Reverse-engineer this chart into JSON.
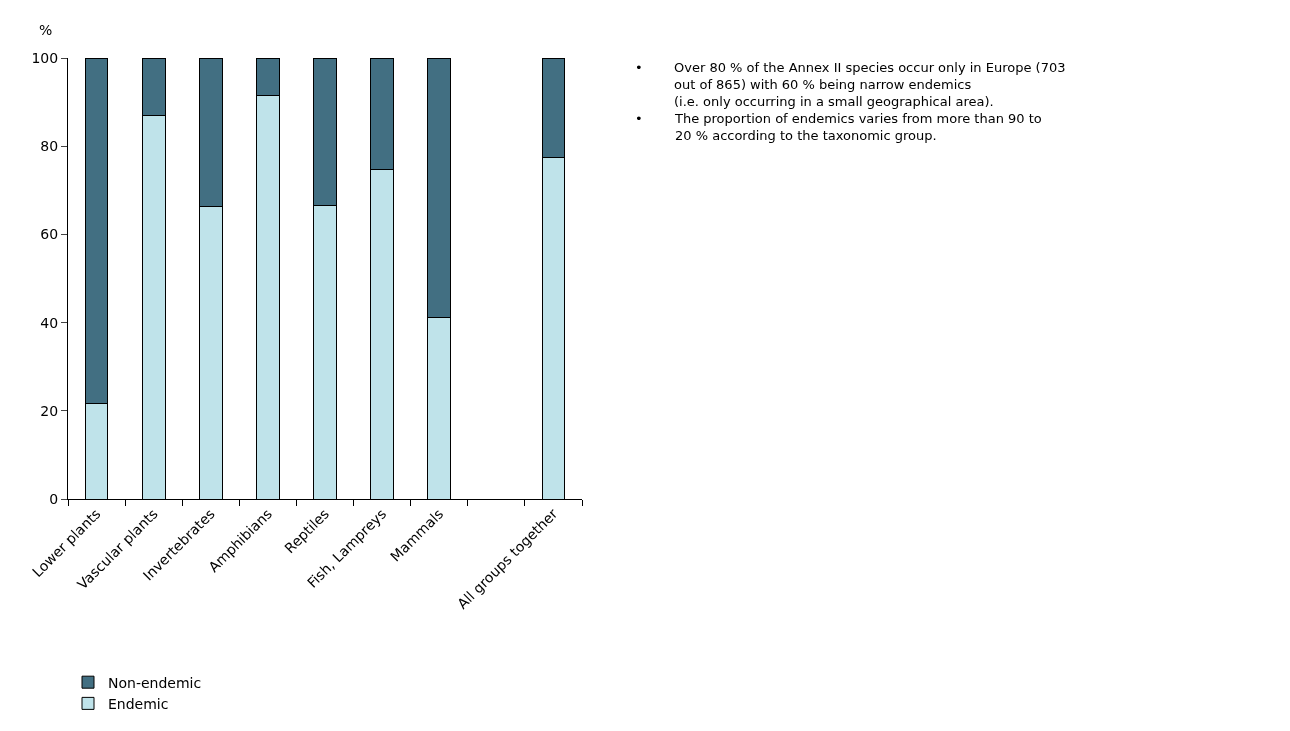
{
  "chart_data": {
    "type": "bar",
    "stacked": true,
    "ylabel": "%",
    "categories": [
      "Lower plants",
      "Vascular plants",
      "Invertebrates",
      "Amphibians",
      "Reptiles",
      "Fish, Lampreys",
      "Mammals",
      null,
      "All groups together"
    ],
    "series": [
      {
        "name": "Endemic",
        "color": "#bfe3ea",
        "values": [
          21.6,
          87.0,
          66.3,
          91.6,
          66.6,
          74.7,
          41.2,
          null,
          77.4
        ]
      },
      {
        "name": "Non-endemic",
        "color": "#426f82",
        "values": [
          78.4,
          13.0,
          33.7,
          8.4,
          33.4,
          25.3,
          58.8,
          null,
          22.6
        ]
      }
    ],
    "ylim": [
      0,
      100
    ],
    "yticks": [
      0,
      20,
      40,
      60,
      80,
      100
    ],
    "legend": "bottom left",
    "annotations": [
      "•\tOver 80 % of the Annex II species occur only in Europe (703\nout of 865) with 60 % being narrow endemics\n(i.e. only occurring in a small geographical area).",
      "•\tThe proportion of endemics varies from more than 90 to\n20 % according to the taxonomic group."
    ]
  }
}
